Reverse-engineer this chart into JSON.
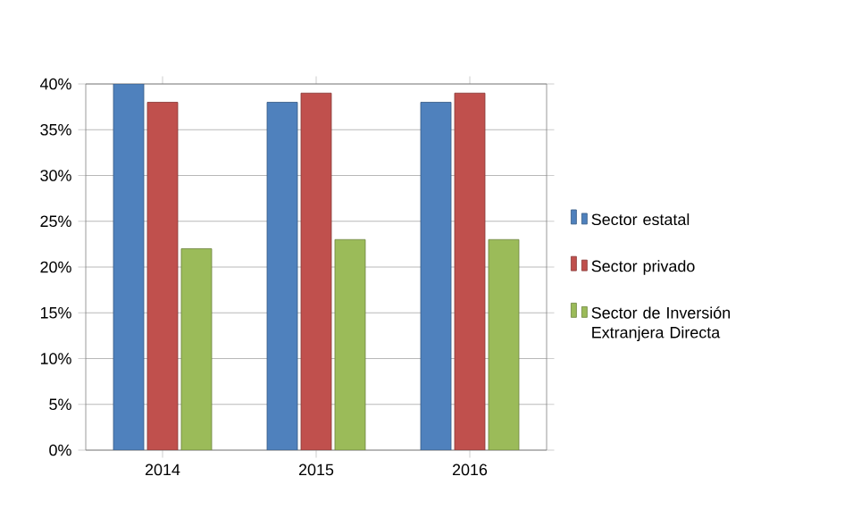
{
  "chart_data": {
    "type": "bar",
    "categories": [
      "2014",
      "2015",
      "2016"
    ],
    "series": [
      {
        "name": "Sector estatal",
        "color": "#4f81bd",
        "values": [
          40,
          38,
          38
        ]
      },
      {
        "name": "Sector privado",
        "color": "#c0504d",
        "values": [
          38,
          39,
          39
        ]
      },
      {
        "name": "Sector de Inversión Extranjera Directa",
        "color": "#9bbb59",
        "values": [
          22,
          23,
          23
        ]
      }
    ],
    "ylim": [
      0,
      40
    ],
    "yticks": [
      {
        "value": 0,
        "label": "0%"
      },
      {
        "value": 5,
        "label": "5%"
      },
      {
        "value": 10,
        "label": "10%"
      },
      {
        "value": 15,
        "label": "15%"
      },
      {
        "value": 20,
        "label": "20%"
      },
      {
        "value": 25,
        "label": "25%"
      },
      {
        "value": 30,
        "label": "30%"
      },
      {
        "value": 35,
        "label": "35%"
      },
      {
        "value": 40,
        "label": "40%"
      }
    ],
    "grid": "y",
    "legend": "right"
  }
}
